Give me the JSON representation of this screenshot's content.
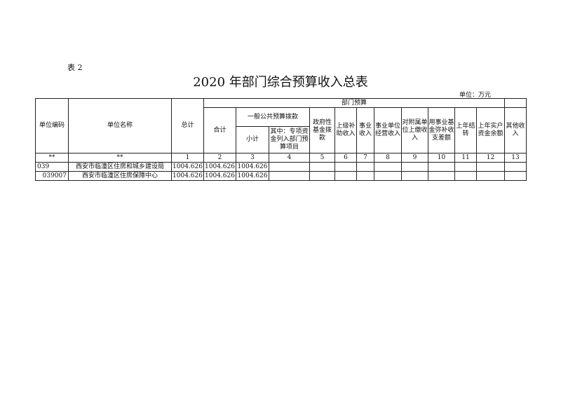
{
  "doc": {
    "label": "表 2",
    "title": "2020 年部门综合预算收入总表",
    "unit": "单位：万元"
  },
  "header": {
    "code": "单位编码",
    "name": "单位名称",
    "total": "总计",
    "dept_budget": "部门预算",
    "subtotal_all": "合计",
    "general": "一般公共预算拨款",
    "sub": "小计",
    "special": "其中：专项资金列入部门预算项目",
    "gov_fund": "政府性基金拨款",
    "superior": "上级补助收入",
    "business": "事业收入",
    "operation": "事业单位经营收入",
    "affiliated": "对附属单位上缴收入",
    "fund_cover": "用事业基金弥补收支差额",
    "carryover": "上年结转",
    "balance": "上年实户资金余额",
    "other": "其他收入"
  },
  "index_row": [
    "**",
    "**",
    "1",
    "2",
    "3",
    "4",
    "5",
    "6",
    "7",
    "8",
    "9",
    "10",
    "11",
    "12",
    "13"
  ],
  "rows": [
    {
      "code": "039",
      "name": "西安市临潼区住房和城乡建设局",
      "total": "1004.626",
      "sum": "1004.626",
      "sub": "1004.626"
    },
    {
      "code": "039007",
      "name": "西安市临潼区住房保障中心",
      "total": "1004.626",
      "sum": "1004.626",
      "sub": "1004.626"
    }
  ]
}
